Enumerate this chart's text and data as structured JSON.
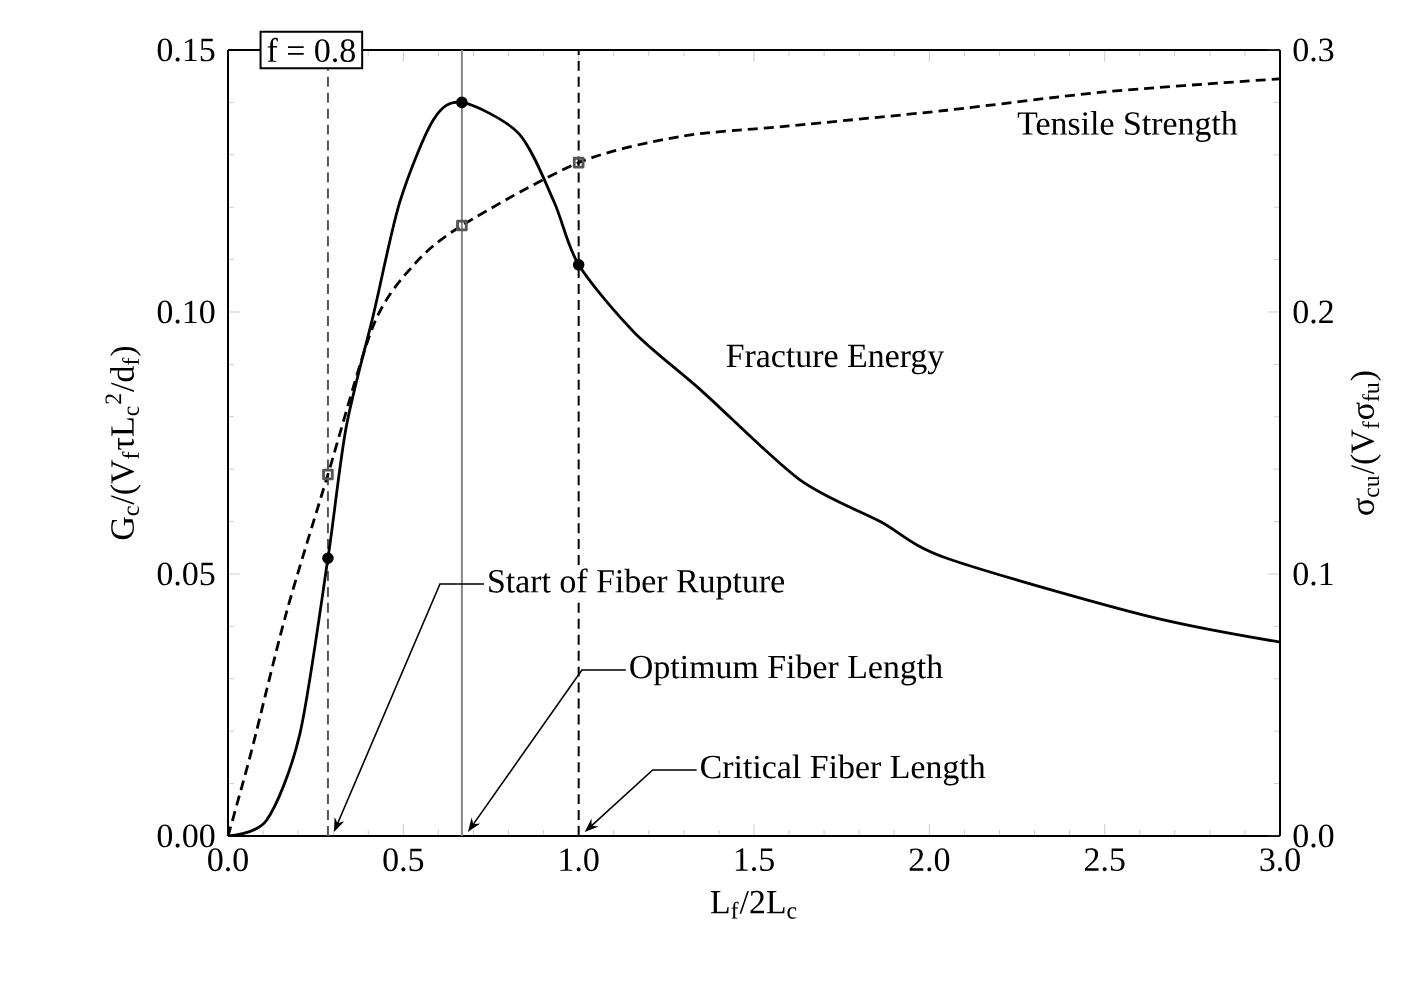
{
  "chart_data": {
    "type": "line",
    "xlabel": "L$_{f}$/2L$_{c}$",
    "ylabel": "G$_{c}$/(V$_{f}$τL$_{c}$$^{2}$/d$_{f}$)",
    "y2label": "σ$_{cu}$/(V$_{f}$σ$_{fu}$)",
    "xlim": [
      0,
      3
    ],
    "ylim": [
      0,
      0.15
    ],
    "y2lim": [
      0,
      0.3
    ],
    "xticks": [
      {
        "value": 0,
        "label": "0.0"
      },
      {
        "value": 0.5,
        "label": "0.5"
      },
      {
        "value": 1,
        "label": "1.0"
      },
      {
        "value": 1.5,
        "label": "1.5"
      },
      {
        "value": 2,
        "label": "2.0"
      },
      {
        "value": 2.5,
        "label": "2.5"
      },
      {
        "value": 3,
        "label": "3.0"
      }
    ],
    "yticks": [
      {
        "value": 0,
        "label": "0.00"
      },
      {
        "value": 0.05,
        "label": "0.05"
      },
      {
        "value": 0.1,
        "label": "0.10"
      },
      {
        "value": 0.15,
        "label": "0.15"
      }
    ],
    "y2ticks": [
      {
        "value": 0,
        "label": "0.0"
      },
      {
        "value": 0.1,
        "label": "0.1"
      },
      {
        "value": 0.2,
        "label": "0.2"
      },
      {
        "value": 0.3,
        "label": "0.3"
      }
    ],
    "series": [
      {
        "name": "Fracture Energy",
        "type": "line",
        "color": "#000000",
        "line_style": "solid",
        "x": [
          0,
          0.11,
          0.205,
          0.285,
          0.337,
          0.415,
          0.49,
          0.585,
          0.667,
          0.83,
          0.93,
          1.0,
          1.16,
          1.35,
          1.63,
          1.86,
          2.05,
          2.62,
          3.0
        ],
        "values": [
          0,
          0.003,
          0.0195,
          0.053,
          0.078,
          0.0996,
          0.121,
          0.1366,
          0.14,
          0.134,
          0.121,
          0.109,
          0.096,
          0.085,
          0.068,
          0.06,
          0.053,
          0.042,
          0.037
        ]
      },
      {
        "name": "Tensile Strength",
        "type": "line",
        "axis": "y2",
        "color": "#000000",
        "line_style": "dashed",
        "x": [
          0,
          0.017,
          0.07,
          0.166,
          0.285,
          0.415,
          0.53,
          0.667,
          1.0,
          1.29,
          1.6,
          2.05,
          2.5,
          3.0
        ],
        "values": [
          0,
          0.008,
          0.034,
          0.085,
          0.138,
          0.195,
          0.218,
          0.233,
          0.257,
          0.267,
          0.271,
          0.277,
          0.284,
          0.289
        ]
      },
      {
        "type": "scatter",
        "color": "#000000",
        "marker": "circle",
        "x": [
          0.285,
          0.667,
          1.0
        ],
        "values": [
          0.053,
          0.14,
          0.109
        ]
      },
      {
        "type": "scatter",
        "axis": "y2",
        "color": "#555555",
        "marker": "square",
        "x": [
          0.285,
          0.667,
          1.0
        ],
        "values": [
          0.138,
          0.233,
          0.257
        ]
      }
    ],
    "ref_lines": [
      {
        "axis": "x",
        "value": 0.285,
        "color": "#555555",
        "line_style": "dashed"
      },
      {
        "axis": "x",
        "value": 0.667,
        "color": "#888888",
        "line_style": "solid"
      },
      {
        "axis": "x",
        "value": 1.0,
        "color": "#000000",
        "line_style": "dashed"
      }
    ],
    "annotations": [
      "f = 0.8",
      {
        "text": "Start of Fiber Rupture",
        "x": 0.285,
        "y": 0
      },
      {
        "text": "Optimum Fiber Length",
        "x": 0.667,
        "y": 0
      },
      {
        "text": "Critical Fiber Length",
        "x": 1.0,
        "y": 0
      }
    ]
  }
}
